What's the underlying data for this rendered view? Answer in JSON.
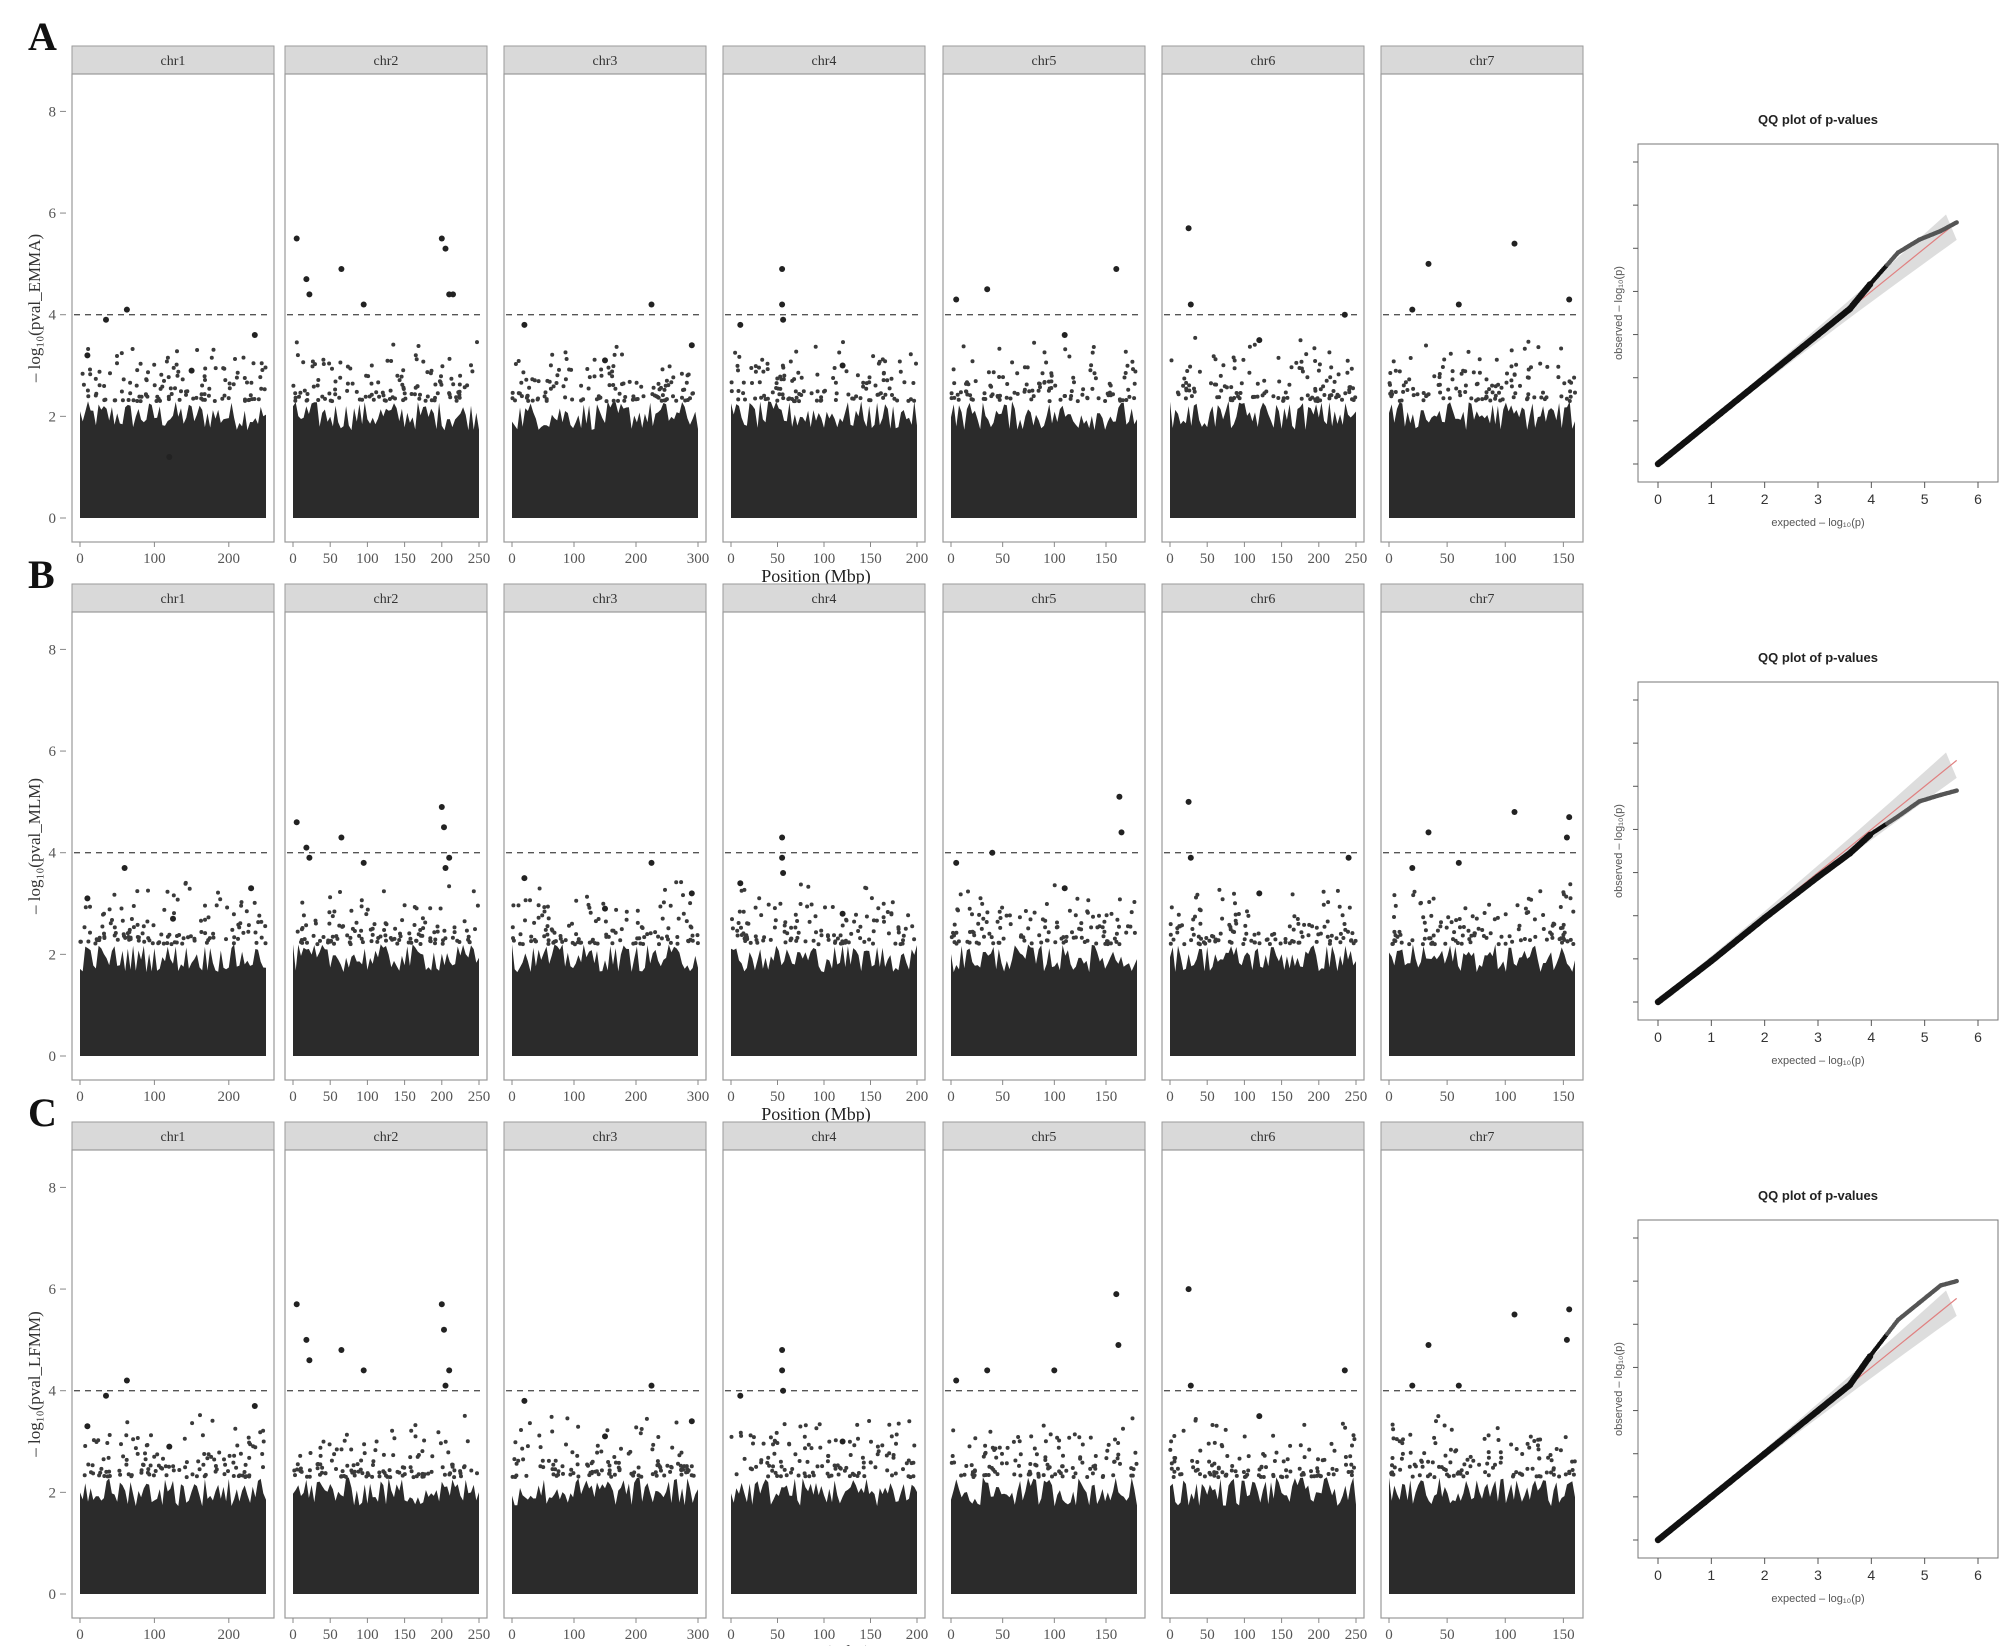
{
  "figure": {
    "panels": [
      {
        "letter": "A",
        "ylabel": "– log₁₀(pval_EMMA)",
        "xlabel": "Position (Mbp)"
      },
      {
        "letter": "B",
        "ylabel": "– log₁₀(pval_MLM)",
        "xlabel": "Position (Mbp)"
      },
      {
        "letter": "C",
        "ylabel": "– log₁₀(pval_LFMM)",
        "xlabel": "Position (Mbp)"
      }
    ],
    "qq": {
      "title": "QQ plot of p-values",
      "xlabel": "expected – log₁₀(p)",
      "ylabel": "observed – log₁₀(p)"
    }
  },
  "chart_data": [
    {
      "type": "scatter",
      "panel": "A",
      "ylabel": "– log₁₀(pval_EMMA)",
      "xlabel": "Position (Mbp)",
      "ylim": [
        0,
        8.5
      ],
      "yticks": [
        0,
        2,
        4,
        6,
        8
      ],
      "threshold": 4,
      "baseline_max_approx": 2.3,
      "facets": [
        {
          "name": "chr1",
          "xmax": 250,
          "xticks": [
            "0",
            "100",
            "200"
          ],
          "xtick_values": [
            0,
            100,
            200
          ],
          "peaks": [
            [
              10,
              3.2
            ],
            [
              35,
              3.9
            ],
            [
              63,
              4.1
            ],
            [
              120,
              1.2
            ],
            [
              150,
              2.9
            ],
            [
              235,
              3.6
            ]
          ]
        },
        {
          "name": "chr2",
          "xmax": 250,
          "xticks": [
            "0",
            "50",
            "100",
            "150",
            "200",
            "250"
          ],
          "xtick_values": [
            0,
            50,
            100,
            150,
            200,
            250
          ],
          "peaks": [
            [
              5,
              5.5
            ],
            [
              18,
              4.7
            ],
            [
              22,
              4.4
            ],
            [
              65,
              4.9
            ],
            [
              95,
              4.2
            ],
            [
              200,
              5.5
            ],
            [
              205,
              5.3
            ],
            [
              210,
              4.4
            ],
            [
              215,
              4.4
            ]
          ]
        },
        {
          "name": "chr3",
          "xmax": 300,
          "xticks": [
            "0",
            "100",
            "200",
            "300"
          ],
          "xtick_values": [
            0,
            100,
            200,
            300
          ],
          "peaks": [
            [
              20,
              3.8
            ],
            [
              150,
              3.1
            ],
            [
              225,
              4.2
            ],
            [
              290,
              3.4
            ]
          ]
        },
        {
          "name": "chr4",
          "xmax": 200,
          "xticks": [
            "0",
            "50",
            "100",
            "150",
            "200"
          ],
          "xtick_values": [
            0,
            50,
            100,
            150,
            200
          ],
          "peaks": [
            [
              55,
              4.9
            ],
            [
              55,
              4.2
            ],
            [
              56,
              3.9
            ],
            [
              10,
              3.8
            ],
            [
              120,
              3.0
            ]
          ]
        },
        {
          "name": "chr5",
          "xmax": 180,
          "xticks": [
            "0",
            "50",
            "100",
            "150"
          ],
          "xtick_values": [
            0,
            50,
            100,
            150
          ],
          "peaks": [
            [
              5,
              4.3
            ],
            [
              35,
              4.5
            ],
            [
              110,
              3.6
            ],
            [
              160,
              4.9
            ]
          ]
        },
        {
          "name": "chr6",
          "xmax": 250,
          "xticks": [
            "0",
            "50",
            "100",
            "150",
            "200",
            "250"
          ],
          "xtick_values": [
            0,
            50,
            100,
            150,
            200,
            250
          ],
          "peaks": [
            [
              25,
              5.7
            ],
            [
              28,
              4.2
            ],
            [
              120,
              3.5
            ],
            [
              235,
              4.0
            ]
          ]
        },
        {
          "name": "chr7",
          "xmax": 160,
          "xticks": [
            "0",
            "50",
            "100",
            "150"
          ],
          "xtick_values": [
            0,
            50,
            100,
            150
          ],
          "peaks": [
            [
              20,
              4.1
            ],
            [
              34,
              5.0
            ],
            [
              60,
              4.2
            ],
            [
              108,
              5.4
            ],
            [
              155,
              4.3
            ]
          ]
        }
      ]
    },
    {
      "type": "scatter",
      "panel": "A-QQ",
      "title": "QQ plot of p-values",
      "xlabel": "expected – log₁₀(p)",
      "ylabel": "observed – log₁₀(p)",
      "xlim": [
        0,
        6
      ],
      "ylim": [
        0,
        7
      ],
      "xticks": [
        0,
        1,
        2,
        3,
        4,
        5,
        6
      ],
      "points": [
        [
          0,
          0
        ],
        [
          1,
          1
        ],
        [
          2,
          2
        ],
        [
          3,
          3
        ],
        [
          3.6,
          3.6
        ],
        [
          4.0,
          4.2
        ],
        [
          4.5,
          4.9
        ],
        [
          4.9,
          5.2
        ],
        [
          5.3,
          5.4
        ],
        [
          5.6,
          5.6
        ]
      ]
    },
    {
      "type": "scatter",
      "panel": "B",
      "ylabel": "– log₁₀(pval_MLM)",
      "xlabel": "Position (Mbp)",
      "ylim": [
        0,
        8.5
      ],
      "yticks": [
        0,
        2,
        4,
        6,
        8
      ],
      "threshold": 4,
      "baseline_max_approx": 2.2,
      "facets": [
        {
          "name": "chr1",
          "xmax": 250,
          "xticks": [
            "0",
            "100",
            "200"
          ],
          "xtick_values": [
            0,
            100,
            200
          ],
          "peaks": [
            [
              10,
              3.1
            ],
            [
              60,
              3.7
            ],
            [
              125,
              2.7
            ],
            [
              230,
              3.3
            ]
          ]
        },
        {
          "name": "chr2",
          "xmax": 250,
          "xticks": [
            "0",
            "50",
            "100",
            "150",
            "200",
            "250"
          ],
          "xtick_values": [
            0,
            50,
            100,
            150,
            200,
            250
          ],
          "peaks": [
            [
              5,
              4.6
            ],
            [
              18,
              4.1
            ],
            [
              22,
              3.9
            ],
            [
              65,
              4.3
            ],
            [
              95,
              3.8
            ],
            [
              200,
              4.9
            ],
            [
              203,
              4.5
            ],
            [
              210,
              3.9
            ],
            [
              205,
              3.7
            ]
          ]
        },
        {
          "name": "chr3",
          "xmax": 300,
          "xticks": [
            "0",
            "100",
            "200",
            "300"
          ],
          "xtick_values": [
            0,
            100,
            200,
            300
          ],
          "peaks": [
            [
              20,
              3.5
            ],
            [
              150,
              2.9
            ],
            [
              225,
              3.8
            ],
            [
              290,
              3.2
            ]
          ]
        },
        {
          "name": "chr4",
          "xmax": 200,
          "xticks": [
            "0",
            "50",
            "100",
            "150",
            "200"
          ],
          "xtick_values": [
            0,
            50,
            100,
            150,
            200
          ],
          "peaks": [
            [
              55,
              4.3
            ],
            [
              55,
              3.9
            ],
            [
              56,
              3.6
            ],
            [
              10,
              3.4
            ],
            [
              120,
              2.8
            ]
          ]
        },
        {
          "name": "chr5",
          "xmax": 180,
          "xticks": [
            "0",
            "50",
            "100",
            "150"
          ],
          "xtick_values": [
            0,
            50,
            100,
            150
          ],
          "peaks": [
            [
              5,
              3.8
            ],
            [
              40,
              4.0
            ],
            [
              110,
              3.3
            ],
            [
              163,
              5.1
            ],
            [
              165,
              4.4
            ]
          ]
        },
        {
          "name": "chr6",
          "xmax": 250,
          "xticks": [
            "0",
            "50",
            "100",
            "150",
            "200",
            "250"
          ],
          "xtick_values": [
            0,
            50,
            100,
            150,
            200,
            250
          ],
          "peaks": [
            [
              25,
              5.0
            ],
            [
              28,
              3.9
            ],
            [
              120,
              3.2
            ],
            [
              240,
              3.9
            ]
          ]
        },
        {
          "name": "chr7",
          "xmax": 160,
          "xticks": [
            "0",
            "50",
            "100",
            "150"
          ],
          "xtick_values": [
            0,
            50,
            100,
            150
          ],
          "peaks": [
            [
              20,
              3.7
            ],
            [
              34,
              4.4
            ],
            [
              60,
              3.8
            ],
            [
              108,
              4.8
            ],
            [
              155,
              4.7
            ],
            [
              153,
              4.3
            ]
          ]
        }
      ]
    },
    {
      "type": "scatter",
      "panel": "B-QQ",
      "title": "QQ plot of p-values",
      "xlabel": "expected – log₁₀(p)",
      "ylabel": "observed – log₁₀(p)",
      "xlim": [
        0,
        6
      ],
      "ylim": [
        0,
        7
      ],
      "xticks": [
        0,
        1,
        2,
        3,
        4,
        5,
        6
      ],
      "points": [
        [
          0,
          0
        ],
        [
          1,
          0.95
        ],
        [
          2,
          1.95
        ],
        [
          3,
          2.9
        ],
        [
          3.6,
          3.45
        ],
        [
          4.0,
          3.9
        ],
        [
          4.5,
          4.3
        ],
        [
          4.9,
          4.65
        ],
        [
          5.3,
          4.8
        ],
        [
          5.6,
          4.9
        ]
      ]
    },
    {
      "type": "scatter",
      "panel": "C",
      "ylabel": "– log₁₀(pval_LFMM)",
      "xlabel": "Position (Mbp)",
      "ylim": [
        0,
        8.5
      ],
      "yticks": [
        0,
        2,
        4,
        6,
        8
      ],
      "threshold": 4,
      "baseline_max_approx": 2.3,
      "facets": [
        {
          "name": "chr1",
          "xmax": 250,
          "xticks": [
            "0",
            "100",
            "200"
          ],
          "xtick_values": [
            0,
            100,
            200
          ],
          "peaks": [
            [
              10,
              3.3
            ],
            [
              35,
              3.9
            ],
            [
              63,
              4.2
            ],
            [
              120,
              2.9
            ],
            [
              235,
              3.7
            ]
          ]
        },
        {
          "name": "chr2",
          "xmax": 250,
          "xticks": [
            "0",
            "50",
            "100",
            "150",
            "200",
            "250"
          ],
          "xtick_values": [
            0,
            50,
            100,
            150,
            200,
            250
          ],
          "peaks": [
            [
              5,
              5.7
            ],
            [
              18,
              5.0
            ],
            [
              22,
              4.6
            ],
            [
              65,
              4.8
            ],
            [
              95,
              4.4
            ],
            [
              200,
              5.7
            ],
            [
              203,
              5.2
            ],
            [
              210,
              4.4
            ],
            [
              205,
              4.1
            ]
          ]
        },
        {
          "name": "chr3",
          "xmax": 300,
          "xticks": [
            "0",
            "100",
            "200",
            "300"
          ],
          "xtick_values": [
            0,
            100,
            200,
            300
          ],
          "peaks": [
            [
              20,
              3.8
            ],
            [
              150,
              3.1
            ],
            [
              225,
              4.1
            ],
            [
              290,
              3.4
            ]
          ]
        },
        {
          "name": "chr4",
          "xmax": 200,
          "xticks": [
            "0",
            "50",
            "100",
            "150",
            "200"
          ],
          "xtick_values": [
            0,
            50,
            100,
            150,
            200
          ],
          "peaks": [
            [
              55,
              4.8
            ],
            [
              55,
              4.4
            ],
            [
              56,
              4.0
            ],
            [
              10,
              3.9
            ],
            [
              120,
              3.0
            ]
          ]
        },
        {
          "name": "chr5",
          "xmax": 180,
          "xticks": [
            "0",
            "50",
            "100",
            "150"
          ],
          "xtick_values": [
            0,
            50,
            100,
            150
          ],
          "peaks": [
            [
              5,
              4.2
            ],
            [
              35,
              4.4
            ],
            [
              100,
              4.4
            ],
            [
              160,
              5.9
            ],
            [
              162,
              4.9
            ]
          ]
        },
        {
          "name": "chr6",
          "xmax": 250,
          "xticks": [
            "0",
            "50",
            "100",
            "150",
            "200",
            "250"
          ],
          "xtick_values": [
            0,
            50,
            100,
            150,
            200,
            250
          ],
          "peaks": [
            [
              25,
              6.0
            ],
            [
              28,
              4.1
            ],
            [
              120,
              3.5
            ],
            [
              235,
              4.4
            ]
          ]
        },
        {
          "name": "chr7",
          "xmax": 160,
          "xticks": [
            "0",
            "50",
            "100",
            "150"
          ],
          "xtick_values": [
            0,
            50,
            100,
            150
          ],
          "peaks": [
            [
              20,
              4.1
            ],
            [
              34,
              4.9
            ],
            [
              60,
              4.1
            ],
            [
              108,
              5.5
            ],
            [
              155,
              5.6
            ],
            [
              153,
              5.0
            ]
          ]
        }
      ]
    },
    {
      "type": "scatter",
      "panel": "C-QQ",
      "title": "QQ plot of p-values",
      "xlabel": "expected – log₁₀(p)",
      "ylabel": "observed – log₁₀(p)",
      "xlim": [
        0,
        6
      ],
      "ylim": [
        0,
        7
      ],
      "xticks": [
        0,
        1,
        2,
        3,
        4,
        5,
        6
      ],
      "points": [
        [
          0,
          0
        ],
        [
          1,
          1
        ],
        [
          2,
          2
        ],
        [
          3,
          3
        ],
        [
          3.6,
          3.6
        ],
        [
          4.0,
          4.3
        ],
        [
          4.5,
          5.1
        ],
        [
          4.9,
          5.5
        ],
        [
          5.3,
          5.9
        ],
        [
          5.6,
          6.0
        ]
      ]
    }
  ]
}
